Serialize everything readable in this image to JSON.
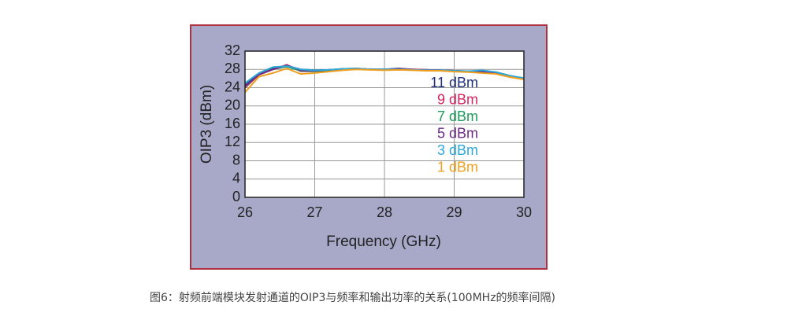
{
  "chart_data": {
    "type": "line",
    "ylabel": "OIP3 (dBm)",
    "xlabel": "Frequency (GHz)",
    "x": [
      26,
      26.2,
      26.4,
      26.6,
      26.8,
      27,
      27.2,
      27.4,
      27.6,
      27.8,
      28,
      28.2,
      28.4,
      28.6,
      28.8,
      29,
      29.2,
      29.4,
      29.6,
      29.8,
      30
    ],
    "xlim": [
      26,
      30
    ],
    "xticks": [
      26,
      27,
      28,
      29,
      30
    ],
    "ylim": [
      0,
      32
    ],
    "yticks": [
      0,
      4,
      8,
      12,
      16,
      20,
      24,
      28,
      32
    ],
    "grid": true,
    "series": [
      {
        "name": "11 dBm",
        "color": "#1f2f7a",
        "values": [
          24.5,
          27,
          28.2,
          28.8,
          28,
          27.8,
          27.9,
          28.1,
          28.2,
          28,
          28,
          28.2,
          28,
          27.9,
          27.8,
          27.7,
          27.6,
          27.5,
          27.4,
          26.6,
          26
        ]
      },
      {
        "name": "9 dBm",
        "color": "#d6245e",
        "values": [
          24,
          26.8,
          28,
          29,
          27.6,
          27.6,
          27.8,
          28,
          28.1,
          28,
          27.9,
          28.1,
          28,
          27.9,
          27.8,
          27.7,
          27.5,
          27.4,
          27.1,
          26.5,
          25.9
        ]
      },
      {
        "name": "7 dBm",
        "color": "#1e9a5a",
        "values": [
          24.2,
          26.9,
          28.1,
          28.6,
          27.7,
          27.6,
          27.8,
          28,
          28.1,
          28,
          27.9,
          28,
          27.9,
          27.8,
          27.7,
          27.6,
          27.5,
          27.6,
          27.2,
          26.6,
          26
        ]
      },
      {
        "name": "5 dBm",
        "color": "#6b2a86",
        "values": [
          24.3,
          26.9,
          28,
          28.9,
          27.8,
          27.7,
          27.9,
          28,
          28.2,
          28,
          28,
          28.1,
          27.9,
          27.8,
          27.8,
          27.7,
          27.5,
          27.5,
          27.2,
          26.5,
          25.9
        ]
      },
      {
        "name": "3 dBm",
        "color": "#2ea8d8",
        "values": [
          25,
          27.2,
          28.5,
          28.7,
          28,
          27.8,
          27.9,
          28.1,
          28.2,
          28,
          28,
          28,
          27.9,
          27.8,
          27.8,
          27.7,
          27.6,
          27.8,
          27.4,
          26.6,
          26.1
        ]
      },
      {
        "name": "1 dBm",
        "color": "#f0a020",
        "values": [
          23,
          26.4,
          27.2,
          28.2,
          27,
          27.2,
          27.5,
          27.8,
          28,
          27.9,
          27.8,
          27.9,
          27.8,
          27.7,
          27.7,
          27.5,
          27.4,
          27.2,
          27,
          26.3,
          25.8
        ]
      }
    ]
  },
  "caption": "图6：射频前端模块发射通道的OIP3与频率和输出功率的关系(100MHz的频率间隔)"
}
